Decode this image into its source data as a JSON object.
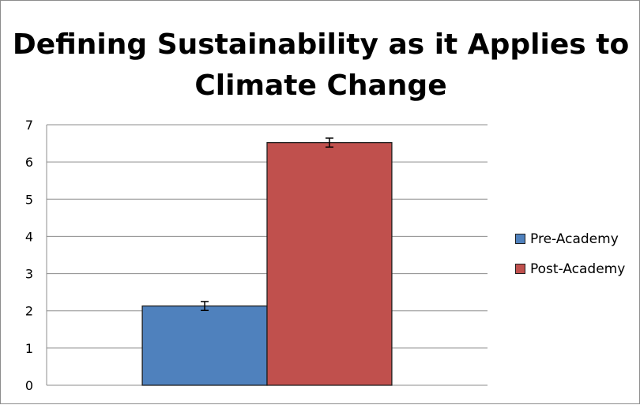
{
  "chart_data": {
    "type": "bar",
    "title": "Defining Sustainability as it Applies to Climate Change",
    "categories": [
      ""
    ],
    "series": [
      {
        "name": "Pre-Academy",
        "values": [
          2.13
        ],
        "error": [
          0.12
        ],
        "color": "#4f81bd"
      },
      {
        "name": "Post-Academy",
        "values": [
          6.52
        ],
        "error": [
          0.12
        ],
        "color": "#c0504d"
      }
    ],
    "xlabel": "",
    "ylabel": "",
    "ylim": [
      0,
      7
    ],
    "yticks": [
      0,
      1,
      2,
      3,
      4,
      5,
      6,
      7
    ],
    "grid": true,
    "legend_position": "right"
  }
}
